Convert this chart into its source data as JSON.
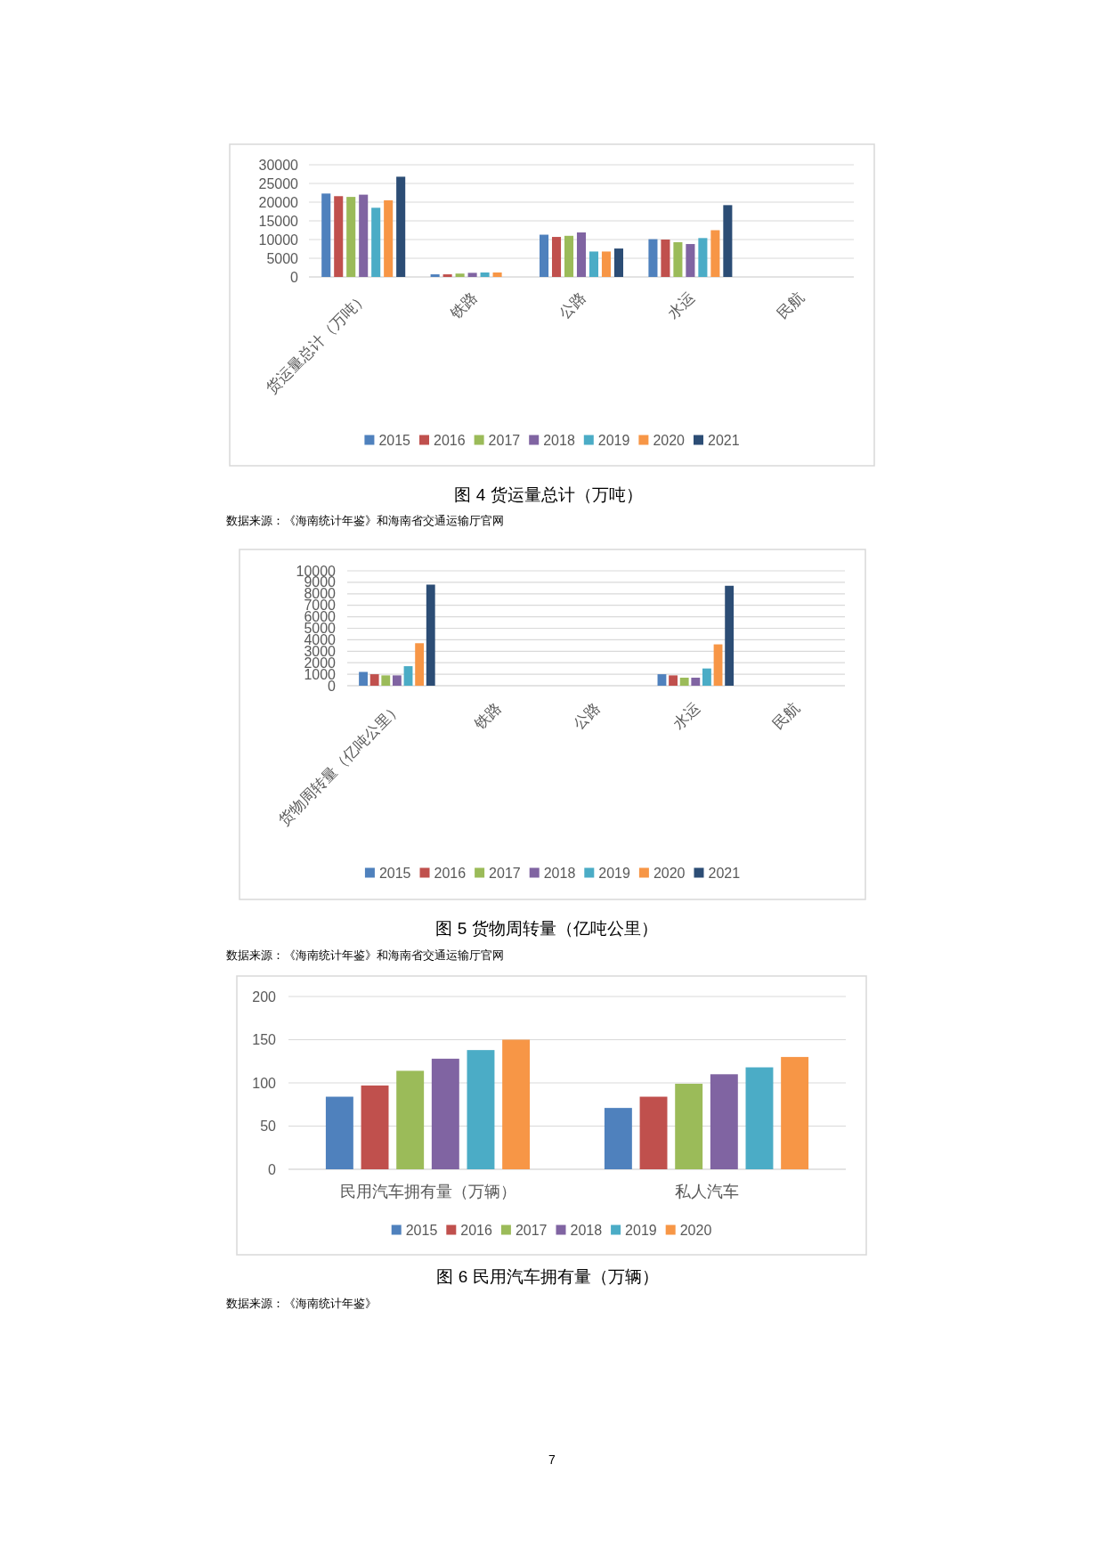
{
  "chart_data": [
    {
      "type": "bar",
      "title": "图 4 货运量总计（万吨）",
      "annotations": [
        "数据来源：《海南统计年鉴》和海南省交通运输厅官网"
      ],
      "categories": [
        "货运量总计（万吨）",
        "铁路",
        "公路",
        "水运",
        "民航"
      ],
      "series": [
        {
          "name": "2015",
          "color": "#4f81bd",
          "values": [
            22300,
            700,
            11300,
            10100,
            null
          ]
        },
        {
          "name": "2016",
          "color": "#c0504d",
          "values": [
            21600,
            700,
            10700,
            10000,
            null
          ]
        },
        {
          "name": "2017",
          "color": "#9bbb59",
          "values": [
            21400,
            900,
            11000,
            9300,
            null
          ]
        },
        {
          "name": "2018",
          "color": "#8064a2",
          "values": [
            22000,
            1100,
            11900,
            8800,
            null
          ]
        },
        {
          "name": "2019",
          "color": "#4bacc6",
          "values": [
            18500,
            1200,
            6800,
            10400,
            null
          ]
        },
        {
          "name": "2020",
          "color": "#f79646",
          "values": [
            20500,
            1200,
            6800,
            12500,
            null
          ]
        },
        {
          "name": "2021",
          "color": "#2c4d75",
          "values": [
            26800,
            null,
            7600,
            19200,
            null
          ]
        }
      ],
      "ylim": [
        0,
        30000
      ],
      "yticks": [
        0,
        5000,
        10000,
        15000,
        20000,
        25000,
        30000
      ],
      "grid": "y",
      "legend": "bottom"
    },
    {
      "type": "bar",
      "title": "图 5 货物周转量（亿吨公里）",
      "annotations": [
        "数据来源：《海南统计年鉴》和海南省交通运输厅官网"
      ],
      "categories": [
        "货物周转量（亿吨公里）",
        "铁路",
        "公路",
        "水运",
        "民航"
      ],
      "series": [
        {
          "name": "2015",
          "color": "#4f81bd",
          "values": [
            1200,
            null,
            null,
            1000,
            null
          ]
        },
        {
          "name": "2016",
          "color": "#c0504d",
          "values": [
            1000,
            null,
            null,
            900,
            null
          ]
        },
        {
          "name": "2017",
          "color": "#9bbb59",
          "values": [
            900,
            null,
            null,
            700,
            null
          ]
        },
        {
          "name": "2018",
          "color": "#8064a2",
          "values": [
            900,
            null,
            null,
            700,
            null
          ]
        },
        {
          "name": "2019",
          "color": "#4bacc6",
          "values": [
            1700,
            null,
            null,
            1500,
            null
          ]
        },
        {
          "name": "2020",
          "color": "#f79646",
          "values": [
            3700,
            null,
            null,
            3600,
            null
          ]
        },
        {
          "name": "2021",
          "color": "#2c4d75",
          "values": [
            8800,
            null,
            null,
            8700,
            null
          ]
        }
      ],
      "ylim": [
        0,
        10000
      ],
      "yticks": [
        0,
        1000,
        2000,
        3000,
        4000,
        5000,
        6000,
        7000,
        8000,
        9000,
        10000
      ],
      "grid": "y",
      "legend": "bottom"
    },
    {
      "type": "bar",
      "title": "图 6 民用汽车拥有量（万辆）",
      "annotations": [
        "数据来源：《海南统计年鉴》",
        "7"
      ],
      "categories": [
        "民用汽车拥有量（万辆）",
        "私人汽车"
      ],
      "series": [
        {
          "name": "2015",
          "color": "#4f81bd",
          "values": [
            84,
            71
          ]
        },
        {
          "name": "2016",
          "color": "#c0504d",
          "values": [
            97,
            84
          ]
        },
        {
          "name": "2017",
          "color": "#9bbb59",
          "values": [
            114,
            99
          ]
        },
        {
          "name": "2018",
          "color": "#8064a2",
          "values": [
            128,
            110
          ]
        },
        {
          "name": "2019",
          "color": "#4bacc6",
          "values": [
            138,
            118
          ]
        },
        {
          "name": "2020",
          "color": "#f79646",
          "values": [
            150,
            130
          ]
        }
      ],
      "ylim": [
        0,
        200
      ],
      "yticks": [
        0,
        50,
        100,
        150,
        200
      ],
      "grid": "y",
      "legend": "bottom"
    }
  ]
}
